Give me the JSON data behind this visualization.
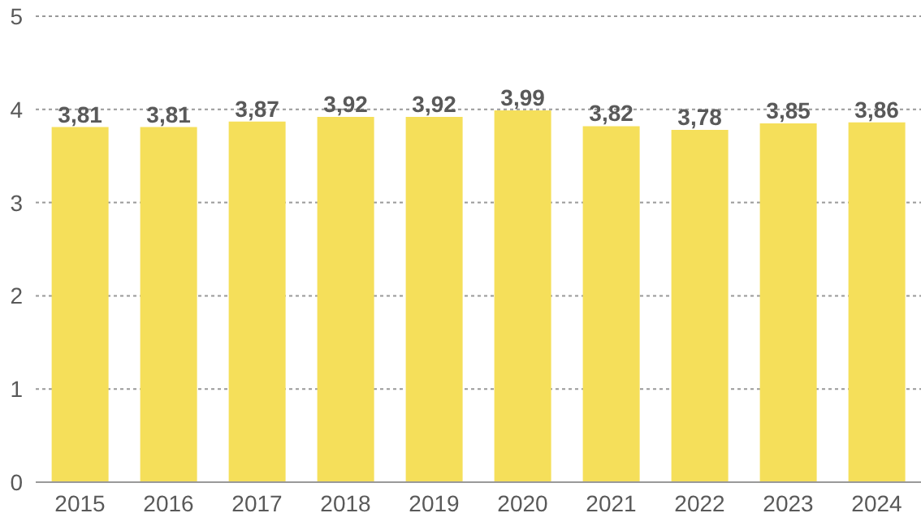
{
  "chart_data": {
    "type": "bar",
    "categories": [
      "2015",
      "2016",
      "2017",
      "2018",
      "2019",
      "2020",
      "2021",
      "2022",
      "2023",
      "2024"
    ],
    "values": [
      3.81,
      3.81,
      3.87,
      3.92,
      3.92,
      3.99,
      3.82,
      3.78,
      3.85,
      3.86
    ],
    "value_labels": [
      "3,81",
      "3,81",
      "3,87",
      "3,92",
      "3,92",
      "3,99",
      "3,82",
      "3,78",
      "3,85",
      "3,86"
    ],
    "color": "#f5df5a",
    "ylim": [
      0,
      5
    ],
    "yticks": [
      0,
      1,
      2,
      3,
      4,
      5
    ],
    "grid": "y"
  }
}
